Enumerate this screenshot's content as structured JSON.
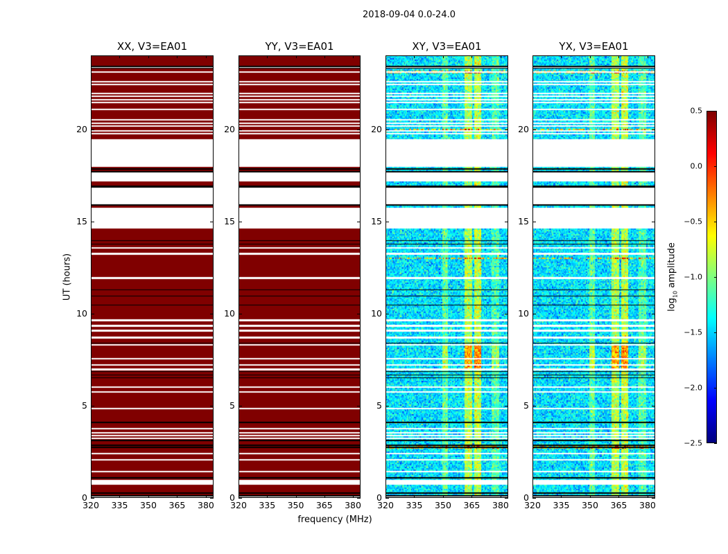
{
  "figure": {
    "suptitle": "2018-09-04 0.0-24.0"
  },
  "chart_data": {
    "type": "heatmap",
    "title": "2018-09-04 0.0-24.0",
    "xlabel": "frequency (MHz)",
    "ylabel": "UT (hours)",
    "xlim": [
      320,
      384
    ],
    "ylim": [
      0,
      24
    ],
    "xticks": [
      "320",
      "335",
      "350",
      "365",
      "380"
    ],
    "xtick_values": [
      320,
      335,
      350,
      365,
      380
    ],
    "yticks": [
      "0",
      "5",
      "10",
      "15",
      "20"
    ],
    "ytick_values": [
      0,
      5,
      10,
      15,
      20
    ],
    "panels": [
      {
        "title": "XX, V3=EA01",
        "kind": "saturated"
      },
      {
        "title": "YY, V3=EA01",
        "kind": "saturated"
      },
      {
        "title": "XY, V3=EA01",
        "kind": "noise"
      },
      {
        "title": "YX, V3=EA01",
        "kind": "noise"
      }
    ],
    "colorbar": {
      "label_main": "log",
      "label_sub": "10",
      "label_rest": " amplitude",
      "vmin": -2.5,
      "vmax": 0.5,
      "colormap": "jet",
      "ticks": [
        "0.5",
        "0.0",
        "−0.5",
        "−1.0",
        "−1.5",
        "−2.0",
        "−2.5"
      ],
      "tick_values": [
        0.5,
        0.0,
        -0.5,
        -1.0,
        -1.5,
        -2.0,
        -2.5
      ]
    },
    "saturated_value": 0.6,
    "noise_mean": -1.45,
    "noise_spread": 0.35,
    "flagged_intervals_hours": [
      [
        17.96,
        19.46
      ],
      [
        17.15,
        17.7
      ],
      [
        15.93,
        16.85
      ],
      [
        14.62,
        15.75
      ],
      [
        0.7,
        0.98
      ]
    ],
    "black_lines_hours": [
      23.4,
      23.3,
      17.85,
      17.7,
      16.9,
      16.85,
      15.88,
      13.95,
      13.76,
      11.29,
      10.95,
      10.46,
      8.4,
      6.86,
      6.67,
      6.52,
      4.09,
      3.11,
      2.85,
      2.74,
      1.09,
      0.26,
      0.12
    ],
    "white_lines_hours": [
      23.36,
      23.1,
      22.57,
      22.42,
      21.93,
      21.78,
      21.6,
      21.45,
      21.07,
      20.5,
      20.32,
      20.17,
      19.9,
      19.76,
      13.57,
      13.24,
      11.92,
      9.64,
      9.34,
      9.07,
      8.7,
      8.29,
      7.54,
      7.2,
      6.97,
      6.0,
      5.74,
      4.84,
      3.75,
      3.52,
      3.37,
      3.22,
      2.4,
      2.06,
      1.42,
      0.05
    ],
    "bright_channels_mhz": [
      {
        "range": [
          349.3,
          352.2
        ],
        "boost": 0.35
      },
      {
        "range": [
          360.8,
          364.8
        ],
        "boost": 0.6
      },
      {
        "range": [
          365.9,
          369.5
        ],
        "boost": 0.65
      },
      {
        "range": [
          375.0,
          379.3
        ],
        "boost": 0.3
      }
    ],
    "rfi_rows_hours": [
      19.95,
      23.1,
      2.75,
      13.0
    ],
    "burst_interval_hours": [
      7.0,
      8.3
    ]
  }
}
